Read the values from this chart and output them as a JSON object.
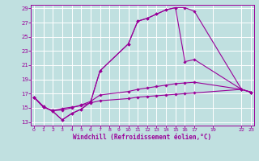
{
  "background_color": "#c0e0e0",
  "grid_color": "#ffffff",
  "line_color": "#990099",
  "xlabel": "Windchill (Refroidissement éolien,°C)",
  "yticks": [
    13,
    15,
    17,
    19,
    21,
    23,
    25,
    27,
    29
  ],
  "xtick_vals": [
    0,
    1,
    2,
    3,
    4,
    5,
    6,
    7,
    8,
    9,
    10,
    11,
    12,
    13,
    14,
    15,
    16,
    17,
    19,
    22,
    23
  ],
  "xtick_labels": [
    "0",
    "1",
    "2",
    "3",
    "4",
    "5",
    "6",
    "7",
    "8",
    "9",
    "10",
    "11",
    "12",
    "13",
    "14",
    "15",
    "16",
    "17",
    "19",
    "22",
    "23"
  ],
  "xlim": [
    -0.3,
    23.3
  ],
  "ylim": [
    12.5,
    29.5
  ],
  "line1_x": [
    0,
    1,
    2,
    3,
    4,
    5,
    6,
    7,
    10,
    11,
    12,
    13,
    14,
    15,
    16,
    17,
    22,
    23
  ],
  "line1_y": [
    16.5,
    15.2,
    14.5,
    13.3,
    14.2,
    14.8,
    15.8,
    20.2,
    24.0,
    27.2,
    27.6,
    28.2,
    28.8,
    29.1,
    29.1,
    28.6,
    17.6,
    17.2
  ],
  "line2_x": [
    0,
    1,
    2,
    3,
    4,
    5,
    6,
    7,
    10,
    11,
    12,
    13,
    14,
    15,
    16,
    17,
    22,
    23
  ],
  "line2_y": [
    16.5,
    15.2,
    14.5,
    13.3,
    14.2,
    14.8,
    15.8,
    20.2,
    24.0,
    27.2,
    27.6,
    28.2,
    28.8,
    29.1,
    21.5,
    21.8,
    17.6,
    17.2
  ],
  "line3_x": [
    0,
    1,
    2,
    3,
    4,
    5,
    6,
    7,
    10,
    11,
    12,
    13,
    14,
    15,
    16,
    17,
    22,
    23
  ],
  "line3_y": [
    16.5,
    15.1,
    14.6,
    14.7,
    15.0,
    15.4,
    15.9,
    16.8,
    17.3,
    17.6,
    17.8,
    18.0,
    18.2,
    18.4,
    18.5,
    18.6,
    17.6,
    17.2
  ],
  "line4_x": [
    0,
    1,
    2,
    3,
    4,
    5,
    6,
    7,
    10,
    11,
    12,
    13,
    14,
    15,
    16,
    17,
    22,
    23
  ],
  "line4_y": [
    16.5,
    15.1,
    14.6,
    14.9,
    15.1,
    15.3,
    15.7,
    16.0,
    16.3,
    16.5,
    16.6,
    16.7,
    16.8,
    16.9,
    17.0,
    17.1,
    17.6,
    17.2
  ]
}
